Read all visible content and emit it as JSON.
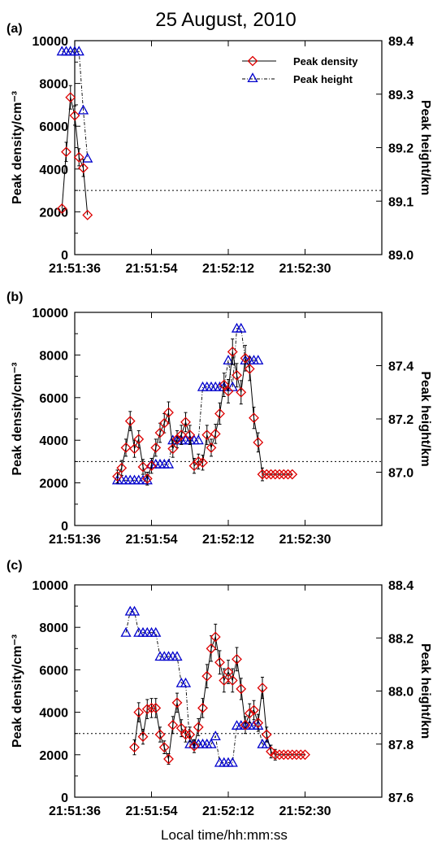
{
  "title": "25 August, 2010",
  "xlabel": "Local time/hh:mm:ss",
  "legend": {
    "density_label": "Peak density",
    "height_label": "Peak height",
    "position": "top-right"
  },
  "colors": {
    "density": "#dd0000",
    "height": "#0000cc",
    "line": "#000000",
    "reference": "#000000"
  },
  "x_ticks": [
    "21:51:36",
    "21:51:54",
    "21:52:12",
    "21:52:30"
  ],
  "chart_data": [
    {
      "type": "line",
      "panel_label": "(a)",
      "ylabel": "Peak density/cm⁻³",
      "ylabel_right": "Peak height/km",
      "xlim_seconds": [
        0,
        72
      ],
      "x_tick_seconds": [
        0,
        18,
        36,
        54
      ],
      "ylim": [
        0,
        10000
      ],
      "y_ticks": [
        "10000",
        "8000",
        "6000",
        "4000",
        "2000",
        "0"
      ],
      "y2lim": [
        89.0,
        89.4
      ],
      "y2_ticks": [
        "89.4",
        "89.3",
        "89.2",
        "89.1",
        "89.0"
      ],
      "y2_tick_values": [
        89.4,
        89.3,
        89.2,
        89.1,
        89.0
      ],
      "reference_density": 3000,
      "density": {
        "x_seconds": [
          -3,
          -2,
          -1,
          0,
          1,
          2,
          3
        ],
        "values": [
          2150,
          4800,
          7350,
          6500,
          4550,
          4050,
          1850
        ],
        "errors": [
          0,
          450,
          550,
          450,
          400,
          400,
          0
        ]
      },
      "height": {
        "x_seconds": [
          -3,
          -2,
          -1,
          0,
          1,
          2,
          3
        ],
        "values": [
          89.38,
          89.38,
          89.38,
          89.38,
          89.38,
          89.27,
          89.18
        ]
      }
    },
    {
      "type": "line",
      "panel_label": "(b)",
      "ylabel": "Peak density/cm⁻³",
      "ylabel_right": "Peak height/km",
      "xlim_seconds": [
        0,
        72
      ],
      "x_tick_seconds": [
        0,
        18,
        36,
        54
      ],
      "ylim": [
        0,
        10000
      ],
      "y_ticks": [
        "10000",
        "8000",
        "6000",
        "4000",
        "2000",
        "0"
      ],
      "y2lim": [
        86.8,
        87.6
      ],
      "y2_ticks": [
        "87.4",
        "87.2",
        "87.0"
      ],
      "y2_tick_values": [
        87.4,
        87.2,
        87.0
      ],
      "reference_density": 3000,
      "density": {
        "x_seconds": [
          10,
          11,
          12,
          13,
          14,
          15,
          16,
          17,
          18,
          19,
          20,
          21,
          22,
          23,
          24,
          25,
          26,
          27,
          28,
          29,
          30,
          31,
          32,
          33,
          34,
          35,
          36,
          37,
          38,
          39,
          40,
          41,
          42,
          43,
          44,
          45,
          46,
          47,
          48,
          49,
          50,
          51
        ],
        "values": [
          2300,
          2700,
          3650,
          4900,
          3600,
          4050,
          2750,
          2200,
          2800,
          3650,
          4350,
          4800,
          5300,
          3600,
          4050,
          4250,
          4850,
          4250,
          2800,
          3000,
          2950,
          4250,
          3650,
          4300,
          5250,
          6600,
          6300,
          8150,
          7050,
          6250,
          7850,
          7350,
          5050,
          3900,
          2400,
          2400,
          2400,
          2400,
          2400,
          2400,
          2400,
          2400
        ],
        "errors": [
          300,
          350,
          400,
          450,
          400,
          400,
          350,
          300,
          350,
          400,
          450,
          450,
          500,
          400,
          400,
          450,
          450,
          450,
          350,
          350,
          350,
          450,
          400,
          450,
          500,
          550,
          550,
          600,
          550,
          550,
          600,
          550,
          500,
          450,
          300,
          0,
          0,
          0,
          0,
          0,
          0,
          0
        ]
      },
      "height": {
        "x_seconds": [
          10,
          11,
          12,
          13,
          14,
          15,
          16,
          17,
          18,
          19,
          20,
          21,
          22,
          23,
          24,
          25,
          26,
          27,
          28,
          29,
          30,
          31,
          32,
          33,
          34,
          35,
          36,
          37,
          38,
          39,
          40,
          41,
          42,
          43
        ],
        "values": [
          86.97,
          86.97,
          86.97,
          86.97,
          86.97,
          86.97,
          86.97,
          86.97,
          87.03,
          87.03,
          87.03,
          87.03,
          87.03,
          87.12,
          87.12,
          87.12,
          87.12,
          87.12,
          87.12,
          87.12,
          87.32,
          87.32,
          87.32,
          87.32,
          87.32,
          87.32,
          87.42,
          87.32,
          87.54,
          87.54,
          87.42,
          87.42,
          87.42,
          87.42
        ]
      }
    },
    {
      "type": "line",
      "panel_label": "(c)",
      "ylabel": "Peak density/cm⁻³",
      "ylabel_right": "Peak height/km",
      "xlim_seconds": [
        0,
        72
      ],
      "x_tick_seconds": [
        0,
        18,
        36,
        54
      ],
      "ylim": [
        0,
        10000
      ],
      "y_ticks": [
        "10000",
        "8000",
        "6000",
        "4000",
        "2000",
        "0"
      ],
      "y2lim": [
        87.6,
        88.4
      ],
      "y2_ticks": [
        "88.4",
        "88.2",
        "88.0",
        "87.8",
        "87.6"
      ],
      "y2_tick_values": [
        88.4,
        88.2,
        88.0,
        87.8,
        87.6
      ],
      "reference_density": 3000,
      "density": {
        "x_seconds": [
          14,
          15,
          16,
          17,
          18,
          19,
          20,
          21,
          22,
          23,
          24,
          25,
          26,
          27,
          28,
          29,
          30,
          31,
          32,
          33,
          34,
          35,
          36,
          37,
          38,
          39,
          40,
          41,
          42,
          43,
          44,
          45,
          46,
          47,
          48,
          49,
          50,
          51,
          52,
          53,
          54
        ],
        "values": [
          2350,
          4000,
          2850,
          4150,
          4200,
          4200,
          2950,
          2350,
          1800,
          3400,
          4450,
          3250,
          2950,
          2950,
          2400,
          3300,
          4200,
          5700,
          7000,
          7550,
          6350,
          5500,
          5900,
          5500,
          6500,
          5100,
          3400,
          3950,
          4100,
          3500,
          5150,
          2950,
          2150,
          2000,
          2000,
          2000,
          2000,
          2000,
          2000,
          2000,
          2000
        ],
        "errors": [
          350,
          450,
          350,
          450,
          450,
          450,
          350,
          300,
          250,
          400,
          450,
          400,
          350,
          350,
          300,
          400,
          450,
          550,
          600,
          600,
          550,
          550,
          550,
          550,
          550,
          500,
          400,
          450,
          450,
          400,
          500,
          350,
          300,
          250,
          0,
          0,
          0,
          0,
          0,
          0,
          0
        ]
      },
      "height": {
        "x_seconds": [
          12,
          13,
          14,
          15,
          16,
          17,
          18,
          19,
          20,
          21,
          22,
          23,
          24,
          25,
          26,
          27,
          28,
          29,
          30,
          31,
          32,
          33,
          34,
          35,
          36,
          37,
          38,
          39,
          40,
          41,
          42,
          43,
          44,
          45
        ],
        "values": [
          88.22,
          88.3,
          88.3,
          88.22,
          88.22,
          88.22,
          88.22,
          88.22,
          88.13,
          88.13,
          88.13,
          88.13,
          88.13,
          88.03,
          88.03,
          87.8,
          87.8,
          87.8,
          87.8,
          87.8,
          87.8,
          87.83,
          87.73,
          87.73,
          87.73,
          87.73,
          87.87,
          87.87,
          87.87,
          87.87,
          87.87,
          87.87,
          87.8,
          87.8
        ]
      }
    }
  ]
}
